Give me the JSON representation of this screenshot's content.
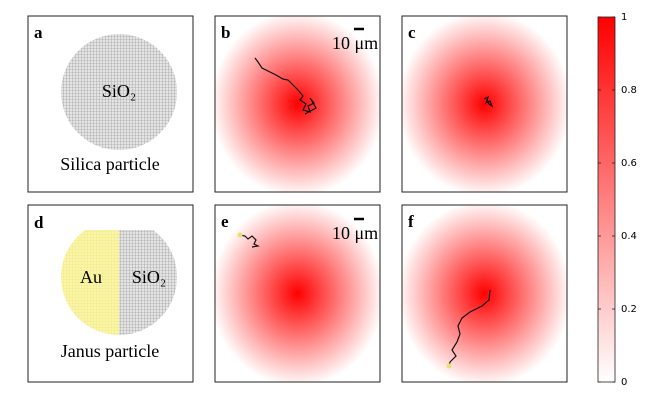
{
  "panels": [
    {
      "label": "a",
      "material": "SiO₂",
      "caption": "Silica particle"
    },
    {
      "label": "b",
      "scale_bar": "10 μm"
    },
    {
      "label": "c"
    },
    {
      "label": "d",
      "materials": [
        "Au",
        "SiO₂"
      ],
      "caption": "Janus particle"
    },
    {
      "label": "e",
      "scale_bar": "10 μm"
    },
    {
      "label": "f"
    }
  ],
  "colorbar": {
    "ylim": [
      0,
      1
    ],
    "yticks": [
      0,
      0.2,
      0.4,
      0.6,
      0.8,
      1
    ],
    "color": "#ff0000"
  }
}
